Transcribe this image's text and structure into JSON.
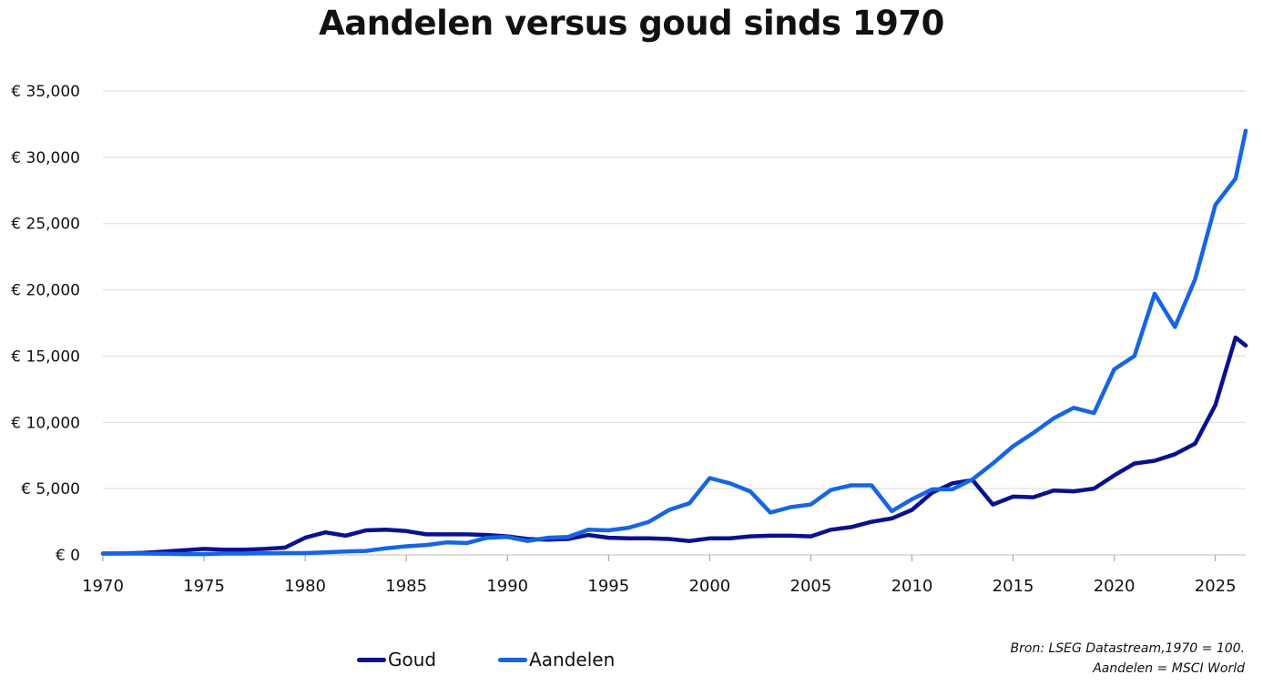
{
  "chart_data": {
    "type": "line",
    "title": "Aandelen versus goud sinds 1970",
    "xlabel": "",
    "ylabel": "",
    "xlim": [
      1970,
      2026.5
    ],
    "ylim": [
      0,
      35000
    ],
    "x_ticks": [
      1970,
      1975,
      1980,
      1985,
      1990,
      1995,
      2000,
      2005,
      2010,
      2015,
      2020,
      2025
    ],
    "y_ticks": [
      0,
      5000,
      10000,
      15000,
      20000,
      25000,
      30000,
      35000
    ],
    "y_tick_labels": [
      "€ 0",
      "€ 5,000",
      "€ 10,000",
      "€ 15,000",
      "€ 20,000",
      "€ 25,000",
      "€ 30,000",
      "€ 35,000"
    ],
    "grid": "horizontal",
    "legend_position": "bottom-left",
    "x": [
      1970,
      1971,
      1972,
      1973,
      1974,
      1975,
      1976,
      1977,
      1978,
      1979,
      1980,
      1981,
      1982,
      1983,
      1984,
      1985,
      1986,
      1987,
      1988,
      1989,
      1990,
      1991,
      1992,
      1993,
      1994,
      1995,
      1996,
      1997,
      1998,
      1999,
      2000,
      2001,
      2002,
      2003,
      2004,
      2005,
      2006,
      2007,
      2008,
      2009,
      2010,
      2011,
      2012,
      2013,
      2014,
      2015,
      2016,
      2017,
      2018,
      2019,
      2020,
      2021,
      2022,
      2023,
      2024,
      2025,
      2026,
      2026.5
    ],
    "series": [
      {
        "name": "Goud",
        "color": "#0a1190",
        "values": [
          100,
          110,
          150,
          250,
          350,
          450,
          400,
          400,
          450,
          550,
          1300,
          1700,
          1450,
          1850,
          1900,
          1800,
          1550,
          1550,
          1550,
          1500,
          1400,
          1200,
          1150,
          1200,
          1500,
          1300,
          1250,
          1250,
          1200,
          1050,
          1250,
          1250,
          1400,
          1450,
          1450,
          1400,
          1900,
          2100,
          2500,
          2750,
          3400,
          4700,
          5400,
          5650,
          3800,
          4400,
          4350,
          4850,
          4800,
          5000,
          6000,
          6900,
          7100,
          7600,
          8400,
          11300,
          16400,
          15800
        ]
      },
      {
        "name": "Aandelen",
        "color": "#1665e4",
        "values": [
          100,
          100,
          100,
          80,
          60,
          60,
          100,
          100,
          120,
          140,
          140,
          200,
          260,
          300,
          500,
          650,
          750,
          950,
          900,
          1300,
          1350,
          1050,
          1300,
          1350,
          1900,
          1850,
          2050,
          2500,
          3400,
          3900,
          5800,
          5400,
          4800,
          3200,
          3600,
          3800,
          4900,
          5250,
          5250,
          3300,
          4200,
          4950,
          4950,
          5700,
          6900,
          8200,
          9200,
          10300,
          11100,
          10700,
          14000,
          15000,
          19700,
          17200,
          20800,
          26400,
          28400,
          32000
        ]
      }
    ]
  },
  "source_lines": [
    "Bron: LSEG Datastream,1970 = 100.",
    "Aandelen = MSCI World"
  ]
}
